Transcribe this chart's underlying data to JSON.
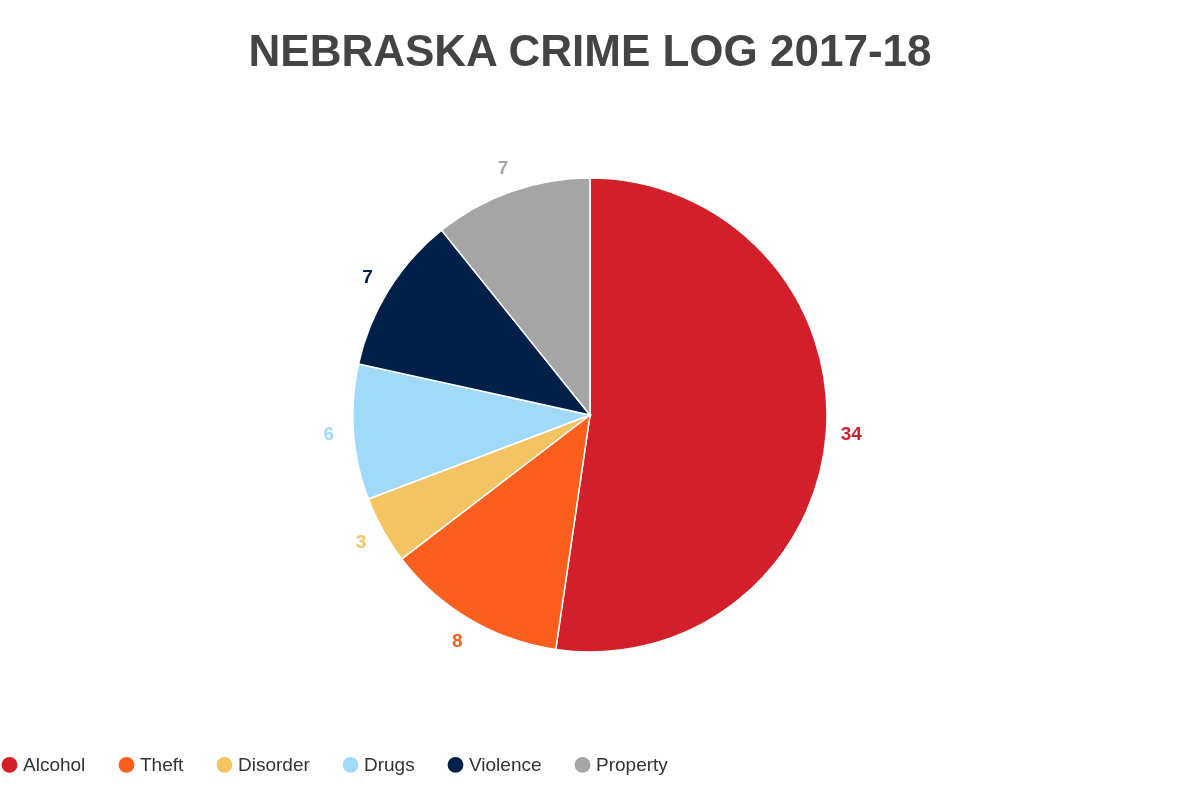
{
  "chart_data": {
    "type": "pie",
    "title": "NEBRASKA CRIME LOG 2017-18",
    "categories": [
      "Alcohol",
      "Theft",
      "Disorder",
      "Drugs",
      "Violence",
      "Property"
    ],
    "values": [
      34,
      8,
      3,
      6,
      7,
      7
    ],
    "colors": [
      "#d31f2a",
      "#fc5f1d",
      "#f5c462",
      "#a1daf8",
      "#00204a",
      "#a5a5a5"
    ],
    "data_labels": true,
    "legend": "bottom"
  }
}
